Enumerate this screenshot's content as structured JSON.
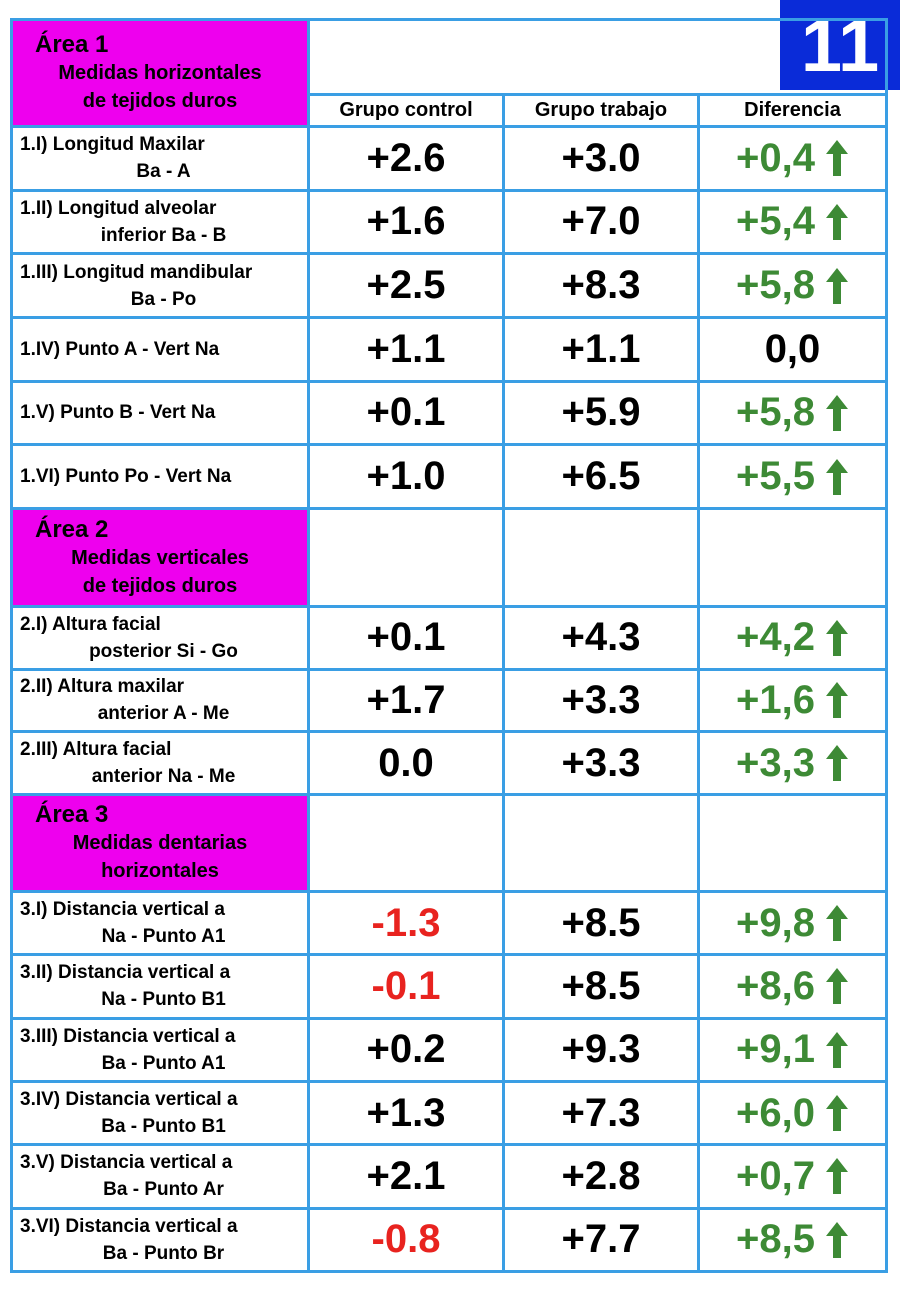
{
  "badge": "11",
  "columns": [
    "Grupo control",
    "Grupo trabajo",
    "Diferencia"
  ],
  "colors": {
    "border": "#3a9ee4",
    "area": "#ee00ee",
    "badge": "#0a2bd8",
    "negative": "#e8231f",
    "gain": "#3d8a35"
  },
  "sections": [
    {
      "title": [
        "Área 1",
        "Medidas horizontales",
        "de tejidos duros"
      ],
      "rows": [
        {
          "label": [
            "1.I) Longitud Maxilar",
            "Ba - A"
          ],
          "control": "+2.6",
          "trabajo": "+3.0",
          "diferencia": "+0,4"
        },
        {
          "label": [
            "1.II) Longitud alveolar",
            "inferior Ba - B"
          ],
          "control": "+1.6",
          "trabajo": "+7.0",
          "diferencia": "+5,4"
        },
        {
          "label": [
            "1.III) Longitud mandibular",
            "Ba - Po"
          ],
          "control": "+2.5",
          "trabajo": "+8.3",
          "diferencia": "+5,8"
        },
        {
          "label": [
            "1.IV) Punto A - Vert Na"
          ],
          "control": "+1.1",
          "trabajo": "+1.1",
          "diferencia": "0,0"
        },
        {
          "label": [
            "1.V) Punto B - Vert Na"
          ],
          "control": "+0.1",
          "trabajo": "+5.9",
          "diferencia": "+5,8"
        },
        {
          "label": [
            "1.VI) Punto Po - Vert Na"
          ],
          "control": "+1.0",
          "trabajo": "+6.5",
          "diferencia": "+5,5"
        }
      ]
    },
    {
      "title": [
        "Área 2",
        "Medidas verticales",
        "de tejidos duros"
      ],
      "rows": [
        {
          "label": [
            "2.I) Altura facial",
            "posterior Si - Go"
          ],
          "control": "+0.1",
          "trabajo": "+4.3",
          "diferencia": "+4,2"
        },
        {
          "label": [
            "2.II) Altura maxilar",
            "anterior A - Me"
          ],
          "control": "+1.7",
          "trabajo": "+3.3",
          "diferencia": "+1,6"
        },
        {
          "label": [
            "2.III) Altura facial",
            "anterior Na - Me"
          ],
          "control": "0.0",
          "trabajo": "+3.3",
          "diferencia": "+3,3"
        }
      ]
    },
    {
      "title": [
        "Área 3",
        "Medidas dentarias",
        "horizontales"
      ],
      "rows": [
        {
          "label": [
            "3.I) Distancia vertical a",
            "Na - Punto A1"
          ],
          "control": "-1.3",
          "trabajo": "+8.5",
          "diferencia": "+9,8"
        },
        {
          "label": [
            "3.II) Distancia vertical a",
            "Na - Punto B1"
          ],
          "control": "-0.1",
          "trabajo": "+8.5",
          "diferencia": "+8,6"
        },
        {
          "label": [
            "3.III) Distancia vertical a",
            "Ba - Punto A1"
          ],
          "control": "+0.2",
          "trabajo": "+9.3",
          "diferencia": "+9,1"
        },
        {
          "label": [
            "3.IV) Distancia vertical a",
            "Ba - Punto B1"
          ],
          "control": "+1.3",
          "trabajo": "+7.3",
          "diferencia": "+6,0"
        },
        {
          "label": [
            "3.V) Distancia vertical a",
            "Ba - Punto Ar"
          ],
          "control": "+2.1",
          "trabajo": "+2.8",
          "diferencia": "+0,7"
        },
        {
          "label": [
            "3.VI) Distancia vertical a",
            "Ba - Punto Br"
          ],
          "control": "-0.8",
          "trabajo": "+7.7",
          "diferencia": "+8,5"
        }
      ]
    }
  ]
}
